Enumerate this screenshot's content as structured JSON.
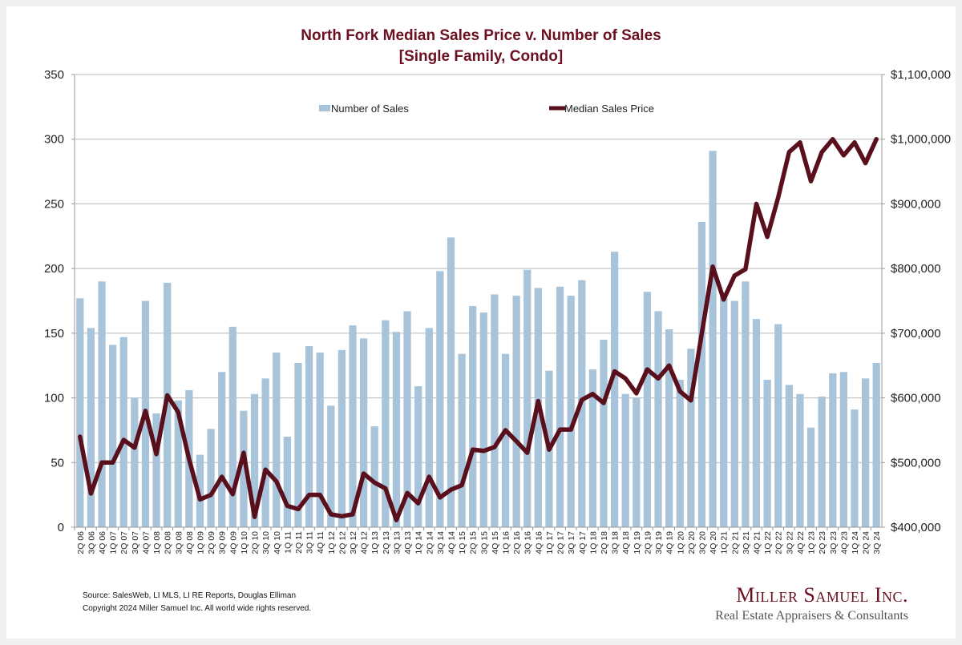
{
  "chart_data": {
    "type": "bar+line",
    "title": [
      "North Fork Median Sales Price v. Number of Sales",
      "[Single Family, Condo]"
    ],
    "categories": [
      "2Q 06",
      "3Q 06",
      "4Q 06",
      "1Q 07",
      "2Q 07",
      "3Q 07",
      "4Q 07",
      "1Q 08",
      "2Q 08",
      "3Q 08",
      "4Q 08",
      "1Q 09",
      "2Q 09",
      "3Q 09",
      "4Q 09",
      "1Q 10",
      "2Q 10",
      "3Q 10",
      "4Q 10",
      "1Q 11",
      "2Q 11",
      "3Q 11",
      "4Q 11",
      "1Q 12",
      "2Q 12",
      "3Q 12",
      "4Q 12",
      "1Q 13",
      "2Q 13",
      "3Q 13",
      "4Q 13",
      "1Q 14",
      "2Q 14",
      "3Q 14",
      "4Q 14",
      "1Q 15",
      "2Q 15",
      "3Q 15",
      "4Q 15",
      "1Q 16",
      "2Q 16",
      "3Q 16",
      "4Q 16",
      "1Q 17",
      "2Q 17",
      "3Q 17",
      "4Q 17",
      "1Q 18",
      "2Q 18",
      "3Q 18",
      "4Q 18",
      "1Q 19",
      "2Q 19",
      "3Q 19",
      "4Q 19",
      "1Q 20",
      "2Q 20",
      "3Q 20",
      "4Q 20",
      "1Q 21",
      "2Q 21",
      "3Q 21",
      "4Q 21",
      "1Q 22",
      "2Q 22",
      "3Q 22",
      "4Q 22",
      "1Q 23",
      "2Q 23",
      "3Q 23",
      "4Q 23",
      "1Q 24",
      "2Q 24",
      "3Q 24"
    ],
    "series": [
      {
        "name": "Number of Sales",
        "type": "bar",
        "axis": "left",
        "color": "#a8c4da",
        "values": [
          177,
          154,
          190,
          141,
          147,
          100,
          175,
          88,
          189,
          98,
          106,
          56,
          76,
          120,
          155,
          90,
          103,
          115,
          135,
          70,
          127,
          140,
          135,
          94,
          137,
          156,
          146,
          78,
          160,
          151,
          167,
          109,
          154,
          198,
          224,
          134,
          171,
          166,
          180,
          134,
          179,
          199,
          185,
          121,
          186,
          179,
          191,
          122,
          145,
          213,
          103,
          100,
          182,
          167,
          153,
          114,
          138,
          236,
          291,
          180,
          175,
          190,
          161,
          114,
          157,
          110,
          103,
          77,
          101,
          119,
          120,
          91,
          115,
          127
        ]
      },
      {
        "name": "Median Sales Price",
        "type": "line",
        "axis": "right",
        "color": "#5a0f1c",
        "values": [
          540000,
          452000,
          500000,
          500000,
          535000,
          523000,
          580000,
          513000,
          604000,
          578000,
          505000,
          443000,
          450000,
          478000,
          451000,
          515000,
          416000,
          489000,
          471000,
          433000,
          428000,
          450000,
          450000,
          420000,
          417000,
          420000,
          483000,
          469000,
          460000,
          411000,
          453000,
          437000,
          478000,
          446000,
          458000,
          465000,
          520000,
          518000,
          524000,
          550000,
          533000,
          515000,
          595000,
          520000,
          551000,
          551000,
          597000,
          606000,
          592000,
          641000,
          630000,
          607000,
          644000,
          630000,
          650000,
          610000,
          596000,
          700000,
          803000,
          752000,
          789000,
          799000,
          900000,
          849000,
          910000,
          980000,
          995000,
          935000,
          980000,
          1000000,
          975000,
          995000,
          963000,
          1000000
        ]
      }
    ],
    "y_left": {
      "range": [
        0,
        350
      ],
      "ticks": [
        "0",
        "50",
        "100",
        "150",
        "200",
        "250",
        "300",
        "350"
      ]
    },
    "y_right": {
      "range": [
        400000,
        1100000
      ],
      "ticks": [
        "$400,000",
        "$500,000",
        "$600,000",
        "$700,000",
        "$800,000",
        "$900,000",
        "$1,000,000",
        "$1,100,000"
      ]
    },
    "grid": true,
    "legend": "top"
  },
  "footer": {
    "source": "Source: SalesWeb, LI MLS, LI RE Reports, Douglas Elliman",
    "copyright": "Copyright 2024 Miller Samuel Inc.  All world wide rights reserved."
  },
  "logo": {
    "name": "Miller Samuel Inc.",
    "tagline": "Real Estate Appraisers & Consultants"
  }
}
